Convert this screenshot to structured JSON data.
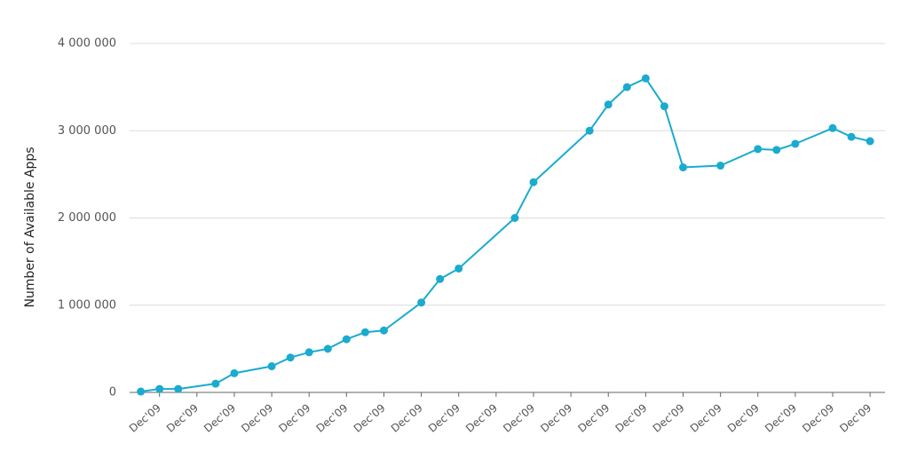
{
  "chart_data": {
    "type": "line",
    "y_label": "Number of Available Apps",
    "x": [
      -0.5,
      0,
      0.5,
      1.5,
      2,
      3,
      3.5,
      4,
      4.5,
      5,
      5.5,
      6,
      7,
      7.5,
      8,
      9.5,
      10,
      11.5,
      12,
      12.5,
      13,
      13.5,
      14,
      15,
      16,
      16.5,
      17,
      18,
      18.5,
      19
    ],
    "series": [
      {
        "color": "#1aabcf",
        "values": [
          10000,
          40000,
          40000,
          100000,
          220000,
          300000,
          400000,
          460000,
          500000,
          610000,
          690000,
          710000,
          1030000,
          1300000,
          1420000,
          2000000,
          2410000,
          3000000,
          3300000,
          3500000,
          3600000,
          3280000,
          2580000,
          2600000,
          2790000,
          2780000,
          2850000,
          3030000,
          2930000,
          2880000
        ]
      }
    ],
    "xlim": [
      -0.8,
      19.4
    ],
    "xticks": [
      {
        "value": 0,
        "label": "Dec'09"
      },
      {
        "value": 1,
        "label": "Dec'09"
      },
      {
        "value": 2,
        "label": "Dec'09"
      },
      {
        "value": 3,
        "label": "Dec'09"
      },
      {
        "value": 4,
        "label": "Dec'09"
      },
      {
        "value": 5,
        "label": "Dec'09"
      },
      {
        "value": 6,
        "label": "Dec'09"
      },
      {
        "value": 7,
        "label": "Dec'09"
      },
      {
        "value": 8,
        "label": "Dec'09"
      },
      {
        "value": 9,
        "label": "Dec'09"
      },
      {
        "value": 10,
        "label": "Dec'09"
      },
      {
        "value": 11,
        "label": "Dec'09"
      },
      {
        "value": 12,
        "label": "Dec'09"
      },
      {
        "value": 13,
        "label": "Dec'09"
      },
      {
        "value": 14,
        "label": "Dec'09"
      },
      {
        "value": 15,
        "label": "Dec'09"
      },
      {
        "value": 16,
        "label": "Dec'09"
      },
      {
        "value": 17,
        "label": "Dec'09"
      },
      {
        "value": 18,
        "label": "Dec'09"
      },
      {
        "value": 19,
        "label": "Dec'09"
      }
    ],
    "ylim": [
      0,
      4000000
    ],
    "yticks": [
      0,
      {
        "value": 1000000,
        "label": "1 000 000"
      },
      {
        "value": 2000000,
        "label": "2 000 000"
      },
      {
        "value": 3000000,
        "label": "3 000 000"
      },
      {
        "value": 4000000,
        "label": "4 000 000"
      }
    ],
    "grid": true
  }
}
